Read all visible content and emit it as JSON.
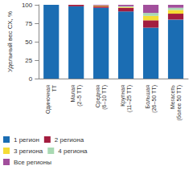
{
  "chart_data": {
    "type": "bar",
    "stacked": true,
    "y_label": "Удельный вес СХ, %",
    "categories": [
      "Одиночная\nТТ",
      "Малая\n(2–5 ТТ)",
      "Средняя\n(6–10 ТТ)",
      "Крупная\n(11–25 ТТ)",
      "Большая\n(26–50 ТТ)",
      "Мегасеть\n(более 50 ТТ)"
    ],
    "series": [
      {
        "name": "1 регион",
        "color": "#1b6db3",
        "values": [
          100,
          98,
          96,
          91,
          69,
          80
        ]
      },
      {
        "name": "2 региона",
        "color": "#a31d3f",
        "values": [
          0,
          2,
          2,
          5,
          10,
          8
        ]
      },
      {
        "name": "3 региона",
        "color": "#f5dc35",
        "values": [
          0,
          0,
          1,
          1,
          6,
          5
        ]
      },
      {
        "name": "4 региона",
        "color": "#a9d9b3",
        "values": [
          0,
          0,
          0,
          1,
          4,
          3
        ]
      },
      {
        "name": "Все регионы",
        "color": "#a24f9c",
        "values": [
          0,
          0,
          1,
          2,
          11,
          4
        ]
      }
    ],
    "ylim": [
      0,
      100
    ],
    "yticks": [
      0,
      25,
      50,
      75,
      100
    ],
    "legend": "bottom",
    "grid": false,
    "data_labels": false
  }
}
